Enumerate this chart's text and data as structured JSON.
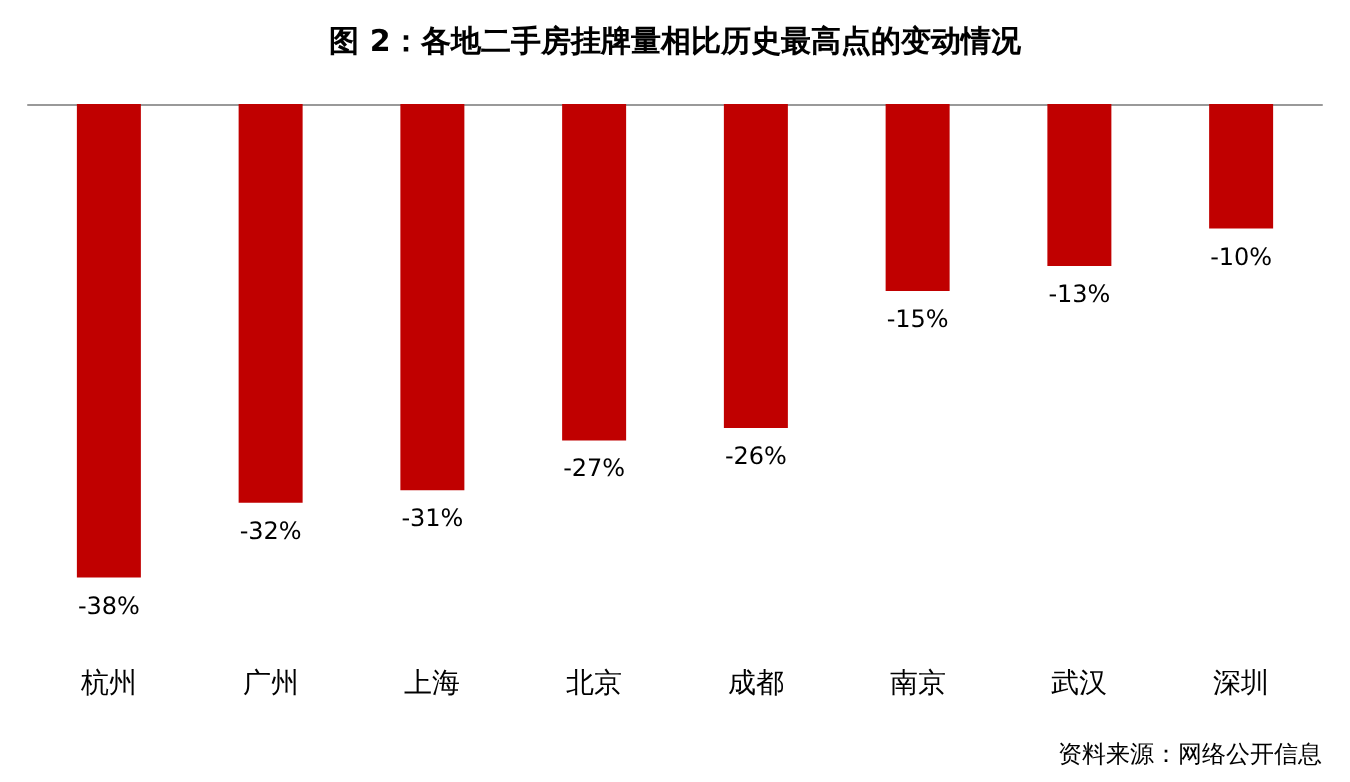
{
  "chart_data": {
    "type": "bar",
    "title": "图 2：各地二手房挂牌量相比历史最高点的变动情况",
    "categories": [
      "杭州",
      "广州",
      "上海",
      "北京",
      "成都",
      "南京",
      "武汉",
      "深圳"
    ],
    "values": [
      -38,
      -32,
      -31,
      -27,
      -26,
      -15,
      -13,
      -10
    ],
    "value_labels": [
      "-38%",
      "-32%",
      "-31%",
      "-27%",
      "-26%",
      "-15%",
      "-13%",
      "-10%"
    ],
    "color": "#c00000",
    "annotations": [
      "资料来源：网络公开信息"
    ]
  }
}
